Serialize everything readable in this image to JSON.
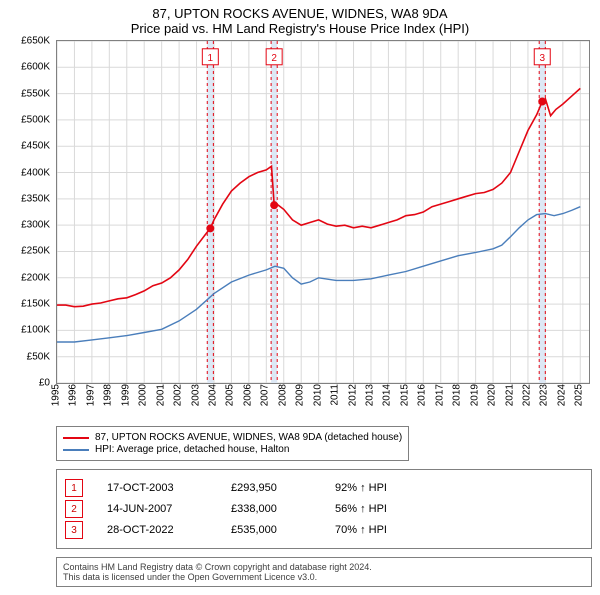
{
  "title_line1": "87, UPTON ROCKS AVENUE, WIDNES, WA8 9DA",
  "title_line2": "Price paid vs. HM Land Registry's House Price Index (HPI)",
  "chart": {
    "type": "line",
    "background_color": "#ffffff",
    "grid_color": "#d9d9d9",
    "axis_color": "#808080",
    "axis_label_fontsize": 10,
    "x": {
      "min": 1995.0,
      "max": 2025.5,
      "ticks": [
        1995,
        1996,
        1997,
        1998,
        1999,
        2000,
        2001,
        2002,
        2003,
        2004,
        2005,
        2006,
        2007,
        2008,
        2009,
        2010,
        2011,
        2012,
        2013,
        2014,
        2015,
        2016,
        2017,
        2018,
        2019,
        2020,
        2021,
        2022,
        2023,
        2024,
        2025
      ],
      "tick_labels": [
        "1995",
        "1996",
        "1997",
        "1998",
        "1999",
        "2000",
        "2001",
        "2002",
        "2003",
        "2004",
        "2005",
        "2006",
        "2007",
        "2008",
        "2009",
        "2010",
        "2011",
        "2012",
        "2013",
        "2014",
        "2015",
        "2016",
        "2017",
        "2018",
        "2019",
        "2020",
        "2021",
        "2022",
        "2023",
        "2024",
        "2025"
      ]
    },
    "y": {
      "min": 0,
      "max": 650000,
      "ticks": [
        0,
        50000,
        100000,
        150000,
        200000,
        250000,
        300000,
        350000,
        400000,
        450000,
        500000,
        550000,
        600000,
        650000
      ],
      "tick_labels": [
        "£0",
        "£50K",
        "£100K",
        "£150K",
        "£200K",
        "£250K",
        "£300K",
        "£350K",
        "£400K",
        "£450K",
        "£500K",
        "£550K",
        "£600K",
        "£650K"
      ]
    },
    "series": [
      {
        "name": "87, UPTON ROCKS AVENUE, WIDNES, WA8 9DA (detached house)",
        "color": "#e30613",
        "line_width": 1.6,
        "points": [
          [
            1995.0,
            148000
          ],
          [
            1995.5,
            148000
          ],
          [
            1996.0,
            145000
          ],
          [
            1996.5,
            146000
          ],
          [
            1997.0,
            150000
          ],
          [
            1997.5,
            152000
          ],
          [
            1998.0,
            156000
          ],
          [
            1998.5,
            160000
          ],
          [
            1999.0,
            162000
          ],
          [
            1999.5,
            168000
          ],
          [
            2000.0,
            175000
          ],
          [
            2000.5,
            185000
          ],
          [
            2001.0,
            190000
          ],
          [
            2001.5,
            200000
          ],
          [
            2002.0,
            215000
          ],
          [
            2002.5,
            235000
          ],
          [
            2003.0,
            260000
          ],
          [
            2003.5,
            282000
          ],
          [
            2003.79,
            293950
          ],
          [
            2004.0,
            310000
          ],
          [
            2004.5,
            340000
          ],
          [
            2005.0,
            365000
          ],
          [
            2005.5,
            380000
          ],
          [
            2006.0,
            392000
          ],
          [
            2006.5,
            400000
          ],
          [
            2007.0,
            405000
          ],
          [
            2007.3,
            412000
          ],
          [
            2007.45,
            338000
          ],
          [
            2007.6,
            340000
          ],
          [
            2008.0,
            330000
          ],
          [
            2008.5,
            310000
          ],
          [
            2009.0,
            300000
          ],
          [
            2009.5,
            305000
          ],
          [
            2010.0,
            310000
          ],
          [
            2010.5,
            302000
          ],
          [
            2011.0,
            298000
          ],
          [
            2011.5,
            300000
          ],
          [
            2012.0,
            295000
          ],
          [
            2012.5,
            298000
          ],
          [
            2013.0,
            295000
          ],
          [
            2013.5,
            300000
          ],
          [
            2014.0,
            305000
          ],
          [
            2014.5,
            310000
          ],
          [
            2015.0,
            318000
          ],
          [
            2015.5,
            320000
          ],
          [
            2016.0,
            325000
          ],
          [
            2016.5,
            335000
          ],
          [
            2017.0,
            340000
          ],
          [
            2017.5,
            345000
          ],
          [
            2018.0,
            350000
          ],
          [
            2018.5,
            355000
          ],
          [
            2019.0,
            360000
          ],
          [
            2019.5,
            362000
          ],
          [
            2020.0,
            368000
          ],
          [
            2020.5,
            380000
          ],
          [
            2021.0,
            400000
          ],
          [
            2021.5,
            440000
          ],
          [
            2022.0,
            480000
          ],
          [
            2022.5,
            510000
          ],
          [
            2022.82,
            535000
          ],
          [
            2023.0,
            540000
          ],
          [
            2023.3,
            508000
          ],
          [
            2023.6,
            520000
          ],
          [
            2024.0,
            530000
          ],
          [
            2024.5,
            545000
          ],
          [
            2025.0,
            560000
          ]
        ]
      },
      {
        "name": "HPI: Average price, detached house, Halton",
        "color": "#4a7ebb",
        "line_width": 1.4,
        "points": [
          [
            1995.0,
            78000
          ],
          [
            1996.0,
            78000
          ],
          [
            1997.0,
            82000
          ],
          [
            1998.0,
            86000
          ],
          [
            1999.0,
            90000
          ],
          [
            2000.0,
            96000
          ],
          [
            2001.0,
            102000
          ],
          [
            2002.0,
            118000
          ],
          [
            2003.0,
            140000
          ],
          [
            2004.0,
            170000
          ],
          [
            2005.0,
            192000
          ],
          [
            2006.0,
            205000
          ],
          [
            2007.0,
            215000
          ],
          [
            2007.5,
            222000
          ],
          [
            2008.0,
            218000
          ],
          [
            2008.5,
            200000
          ],
          [
            2009.0,
            188000
          ],
          [
            2009.5,
            192000
          ],
          [
            2010.0,
            200000
          ],
          [
            2011.0,
            195000
          ],
          [
            2012.0,
            195000
          ],
          [
            2013.0,
            198000
          ],
          [
            2014.0,
            205000
          ],
          [
            2015.0,
            212000
          ],
          [
            2016.0,
            222000
          ],
          [
            2017.0,
            232000
          ],
          [
            2018.0,
            242000
          ],
          [
            2019.0,
            248000
          ],
          [
            2020.0,
            255000
          ],
          [
            2020.5,
            262000
          ],
          [
            2021.0,
            278000
          ],
          [
            2021.5,
            295000
          ],
          [
            2022.0,
            310000
          ],
          [
            2022.5,
            320000
          ],
          [
            2023.0,
            322000
          ],
          [
            2023.5,
            318000
          ],
          [
            2024.0,
            322000
          ],
          [
            2024.5,
            328000
          ],
          [
            2025.0,
            335000
          ]
        ]
      }
    ],
    "sale_markers": {
      "band_fill": "#dde8f5",
      "band_stroke": "#e30613",
      "band_stroke_dash": "3,3",
      "band_width_years": 0.35,
      "dot_color": "#e30613",
      "dot_radius": 4,
      "badge_border_color": "#e30613",
      "badge_fill": "#ffffff",
      "badge_text_color": "#e30613",
      "items": [
        {
          "n": "1",
          "x": 2003.79,
          "y": 293950,
          "badge_y": 620000
        },
        {
          "n": "2",
          "x": 2007.45,
          "y": 338000,
          "badge_y": 620000
        },
        {
          "n": "3",
          "x": 2022.82,
          "y": 535000,
          "badge_y": 620000
        }
      ]
    }
  },
  "legend": {
    "items": [
      {
        "color": "#e30613",
        "label": "87, UPTON ROCKS AVENUE, WIDNES, WA8 9DA (detached house)"
      },
      {
        "color": "#4a7ebb",
        "label": "HPI: Average price, detached house, Halton"
      }
    ]
  },
  "sales_table": {
    "badge_border_color": "#e30613",
    "rows": [
      {
        "n": "1",
        "date": "17-OCT-2003",
        "price": "£293,950",
        "rel": "92% ↑ HPI"
      },
      {
        "n": "2",
        "date": "14-JUN-2007",
        "price": "£338,000",
        "rel": "56% ↑ HPI"
      },
      {
        "n": "3",
        "date": "28-OCT-2022",
        "price": "£535,000",
        "rel": "70% ↑ HPI"
      }
    ]
  },
  "attribution": {
    "line1": "Contains HM Land Registry data © Crown copyright and database right 2024.",
    "line2": "This data is licensed under the Open Government Licence v3.0."
  }
}
